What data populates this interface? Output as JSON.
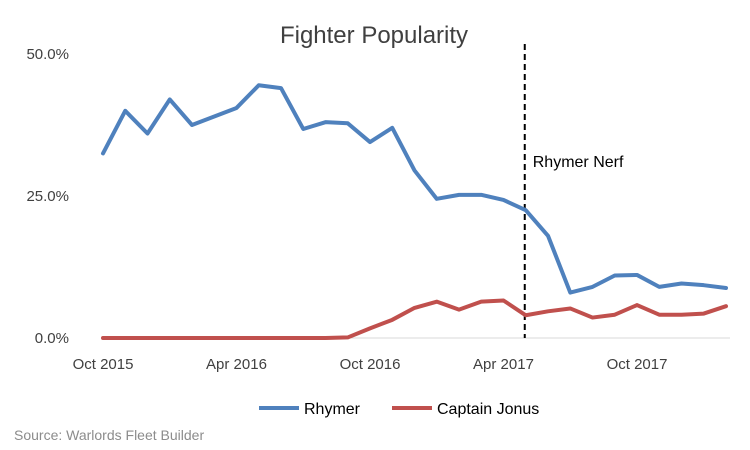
{
  "chart_data": {
    "type": "line",
    "title": "Fighter Popularity",
    "xlabel": "",
    "ylabel": "",
    "ylim": [
      0,
      50
    ],
    "y_ticks": [
      {
        "value": 0,
        "label": "0.0%"
      },
      {
        "value": 25,
        "label": "25.0%"
      },
      {
        "value": 50,
        "label": "50.0%"
      }
    ],
    "x_ticks": [
      {
        "index": 0,
        "label": "Oct 2015"
      },
      {
        "index": 6,
        "label": "Apr 2016"
      },
      {
        "index": 12,
        "label": "Oct 2016"
      },
      {
        "index": 18,
        "label": "Apr 2017"
      },
      {
        "index": 24,
        "label": "Oct 2017"
      }
    ],
    "categories": [
      "Oct 2015",
      "Nov 2015",
      "Dec 2015",
      "Jan 2016",
      "Feb 2016",
      "Mar 2016",
      "Apr 2016",
      "May 2016",
      "Jun 2016",
      "Jul 2016",
      "Aug 2016",
      "Sep 2016",
      "Oct 2016",
      "Nov 2016",
      "Dec 2016",
      "Jan 2017",
      "Feb 2017",
      "Mar 2017",
      "Apr 2017",
      "May 2017",
      "Jun 2017",
      "Jul 2017",
      "Aug 2017",
      "Sep 2017",
      "Oct 2017",
      "Nov 2017",
      "Dec 2017",
      "Jan 2018",
      "Feb 2018"
    ],
    "series": [
      {
        "name": "Rhymer",
        "color": "#4f81bd",
        "values": [
          32.5,
          40.0,
          36.0,
          42.0,
          37.5,
          39.0,
          40.5,
          44.5,
          44.0,
          36.8,
          38.0,
          37.8,
          34.5,
          37.0,
          29.5,
          24.5,
          25.2,
          25.2,
          24.3,
          22.5,
          18.0,
          8.0,
          9.0,
          11.0,
          11.1,
          9.0,
          9.6,
          9.3,
          8.8
        ]
      },
      {
        "name": "Captain Jonus",
        "color": "#c0504d",
        "values": [
          0,
          0,
          0,
          0,
          0,
          0,
          0,
          0,
          0,
          0,
          0,
          0.1,
          1.7,
          3.2,
          5.3,
          6.4,
          5.0,
          6.4,
          6.6,
          4.0,
          4.7,
          5.2,
          3.6,
          4.1,
          5.8,
          4.1,
          4.1,
          4.3,
          5.6
        ]
      }
    ],
    "annotation": {
      "label": "Rhymer Nerf",
      "x_index": 19
    },
    "legend": {
      "position": "bottom",
      "entries": [
        "Rhymer",
        "Captain Jonus"
      ]
    },
    "grid": false
  },
  "footer": {
    "source": "Source: Warlords Fleet Builder"
  }
}
